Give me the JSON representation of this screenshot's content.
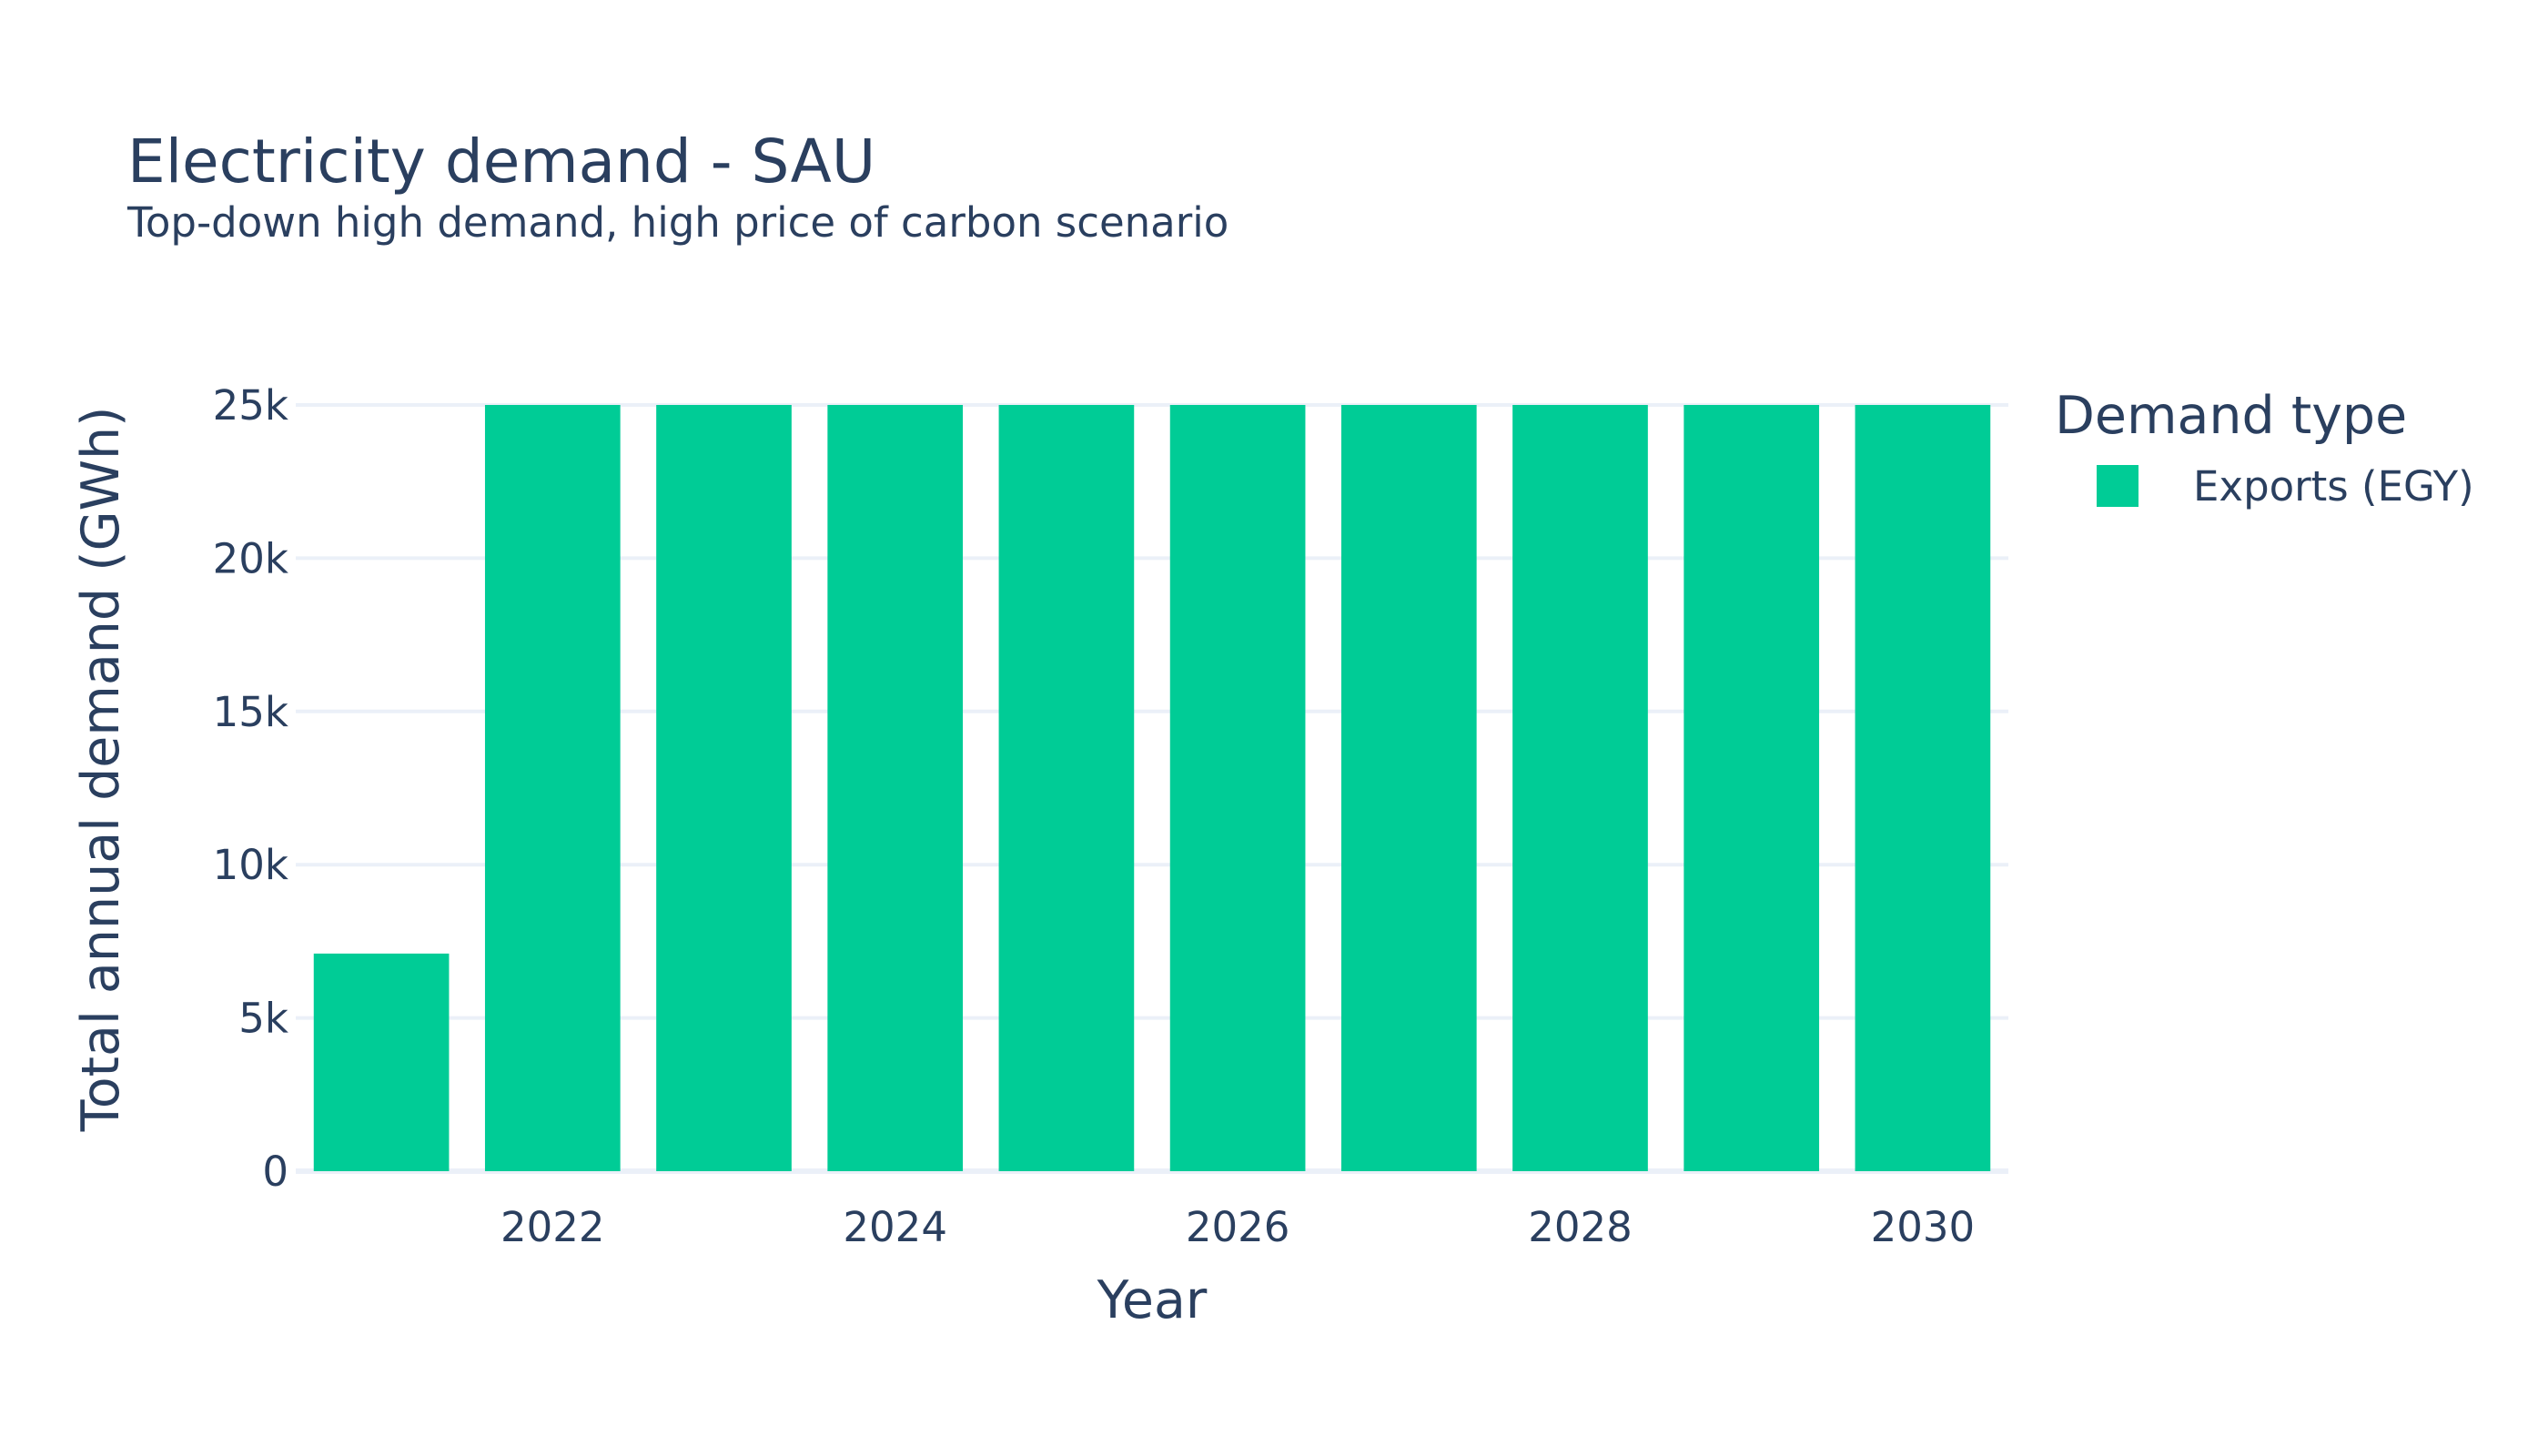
{
  "colors": {
    "background": "#ffffff",
    "text": "#2a3f5f",
    "grid": "#ebf0f8",
    "series": "#00cc96"
  },
  "chart_data": {
    "type": "bar",
    "title": "Electricity demand - SAU",
    "subtitle": "Top-down high demand, high price of carbon scenario",
    "xlabel": "Year",
    "ylabel": "Total annual demand (GWh)",
    "categories": [
      2021,
      2022,
      2023,
      2024,
      2025,
      2026,
      2027,
      2028,
      2029,
      2030
    ],
    "x_tick_labels": [
      "2022",
      "2024",
      "2026",
      "2028",
      "2030"
    ],
    "y_tick_values": [
      0,
      5000,
      10000,
      15000,
      20000,
      25000
    ],
    "y_tick_labels": [
      "0",
      "5k",
      "10k",
      "15k",
      "20k",
      "25k"
    ],
    "ylim": [
      0,
      25000
    ],
    "grid": true,
    "legend_placement": "right",
    "legend_title": "Demand type",
    "series": [
      {
        "name": "Exports (EGY)",
        "color": "#00cc96",
        "values": [
          7100,
          25000,
          25000,
          25000,
          25000,
          25000,
          25000,
          25000,
          25000,
          25000
        ]
      }
    ]
  }
}
